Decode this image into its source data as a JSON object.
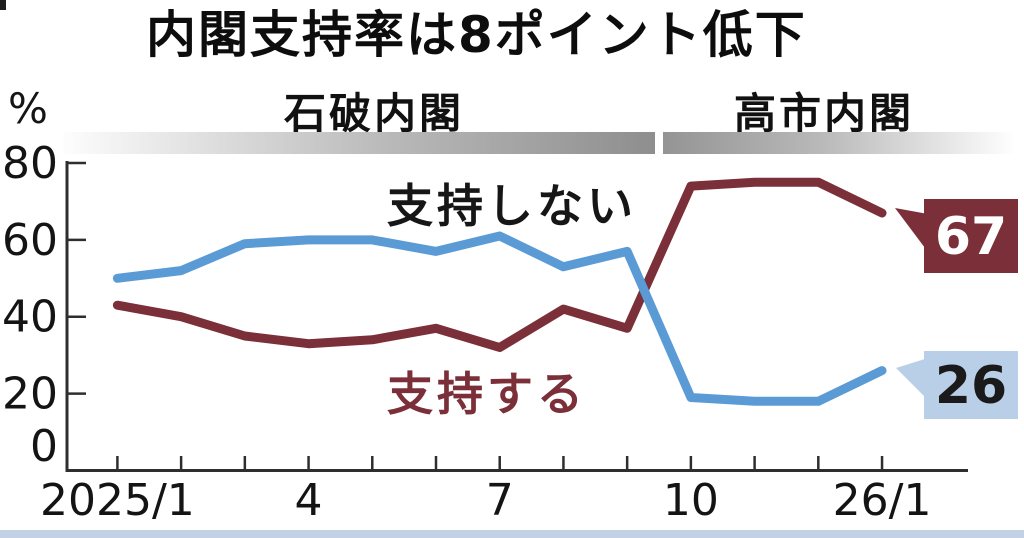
{
  "title": "内閣支持率は8ポイント低下",
  "y_axis_unit": "%",
  "era_labels": {
    "left": "石破内閣",
    "right": "高市内閣"
  },
  "series_labels": {
    "disapprove": "支持しない",
    "approve": "支持する"
  },
  "callouts": {
    "approve_end": "67",
    "disapprove_end": "26"
  },
  "colors": {
    "disapprove_line": "#5b9bd5",
    "approve_line": "#7b2f38",
    "approve_callout_bg": "#7b2f38",
    "approve_callout_text": "#ffffff",
    "disapprove_callout_bg": "#b9cfe8",
    "disapprove_callout_text": "#1a1a1a",
    "axis": "#2e2e2e",
    "tick_text": "#141414"
  },
  "chart_data": {
    "type": "line",
    "title": "内閣支持率は8ポイント低下",
    "ylabel": "%",
    "ylim": [
      0,
      80
    ],
    "y_ticks": [
      80,
      60,
      40,
      20,
      0
    ],
    "grid": false,
    "categories": [
      "2025/1",
      "2025/2",
      "2025/3",
      "2025/4",
      "2025/5",
      "2025/6",
      "2025/7",
      "2025/8",
      "2025/9",
      "2025/10",
      "2025/11",
      "2025/12",
      "2026/1"
    ],
    "x_tick_labels": [
      {
        "index": 0,
        "label": "2025/1"
      },
      {
        "index": 3,
        "label": "4"
      },
      {
        "index": 6,
        "label": "7"
      },
      {
        "index": 9,
        "label": "10"
      },
      {
        "index": 12,
        "label": "26/1"
      }
    ],
    "annotations": [
      "石破内閣 (2025/1–2025/9)",
      "高市内閣 (2025/10–2026/1)"
    ],
    "series": [
      {
        "name": "支持しない",
        "color": "#5b9bd5",
        "values": [
          50,
          52,
          59,
          60,
          60,
          57,
          61,
          53,
          57,
          19,
          18,
          18,
          26
        ],
        "end_label": "26"
      },
      {
        "name": "支持する",
        "color": "#7b2f38",
        "values": [
          43,
          40,
          35,
          33,
          34,
          37,
          32,
          42,
          37,
          74,
          75,
          75,
          67
        ],
        "end_label": "67"
      }
    ]
  }
}
